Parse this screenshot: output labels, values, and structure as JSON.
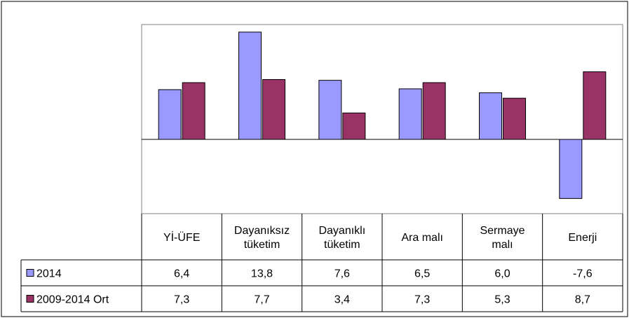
{
  "chart_data": {
    "type": "bar",
    "categories": [
      [
        "Yİ-ÜFE"
      ],
      [
        "Dayanıksız",
        "tüketim"
      ],
      [
        "Dayanıklı",
        "tüketim"
      ],
      [
        "Ara malı"
      ],
      [
        "Sermaye",
        "malı"
      ],
      [
        "Enerji"
      ]
    ],
    "series": [
      {
        "name": "2014",
        "values": [
          6.4,
          13.8,
          7.6,
          6.5,
          6.0,
          -7.6
        ],
        "labels": [
          "6,4",
          "13,8",
          "7,6",
          "6,5",
          "6,0",
          "-7,6"
        ],
        "color": "#9999ff"
      },
      {
        "name": "2009-2014 Ort",
        "values": [
          7.3,
          7.7,
          3.4,
          7.3,
          5.3,
          8.7
        ],
        "labels": [
          "7,3",
          "7,7",
          "3,4",
          "7,3",
          "5,3",
          "8,7"
        ],
        "color": "#993366"
      }
    ],
    "ylim": [
      -10,
      15
    ],
    "grid": false,
    "legend": "data-table-left",
    "data_table": true
  }
}
